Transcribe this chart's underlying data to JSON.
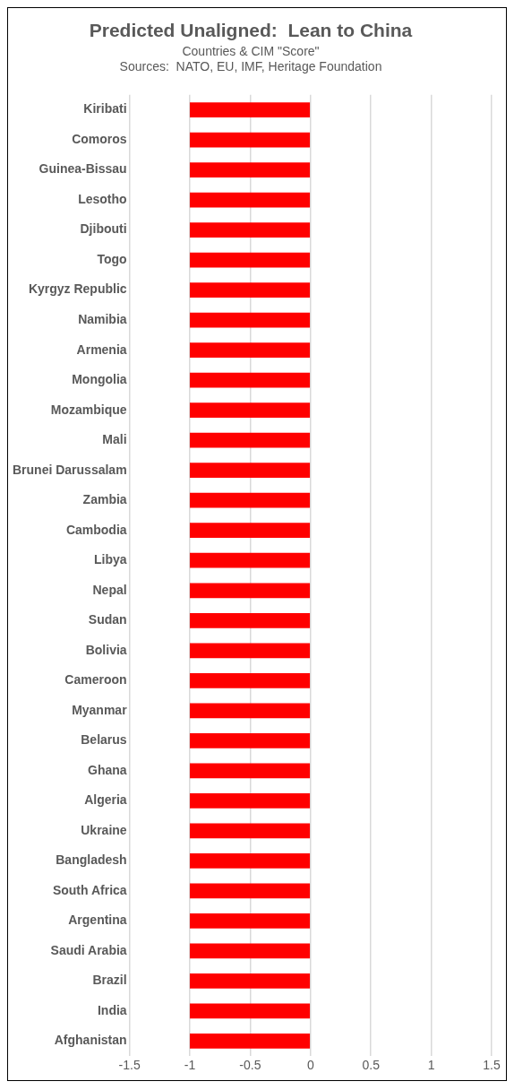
{
  "chart_data": {
    "type": "bar",
    "orientation": "horizontal",
    "title": "Predicted Unaligned:  Lean to China",
    "subtitle": "Countries & CIM \"Score\"",
    "annotations": [
      "Sources:  NATO, EU, IMF, Heritage Foundation"
    ],
    "categories": [
      "Kiribati",
      "Comoros",
      "Guinea-Bissau",
      "Lesotho",
      "Djibouti",
      "Togo",
      "Kyrgyz Republic",
      "Namibia",
      "Armenia",
      "Mongolia",
      "Mozambique",
      "Mali",
      "Brunei Darussalam",
      "Zambia",
      "Cambodia",
      "Libya",
      "Nepal",
      "Sudan",
      "Bolivia",
      "Cameroon",
      "Myanmar",
      "Belarus",
      "Ghana",
      "Algeria",
      "Ukraine",
      "Bangladesh",
      "South Africa",
      "Argentina",
      "Saudi Arabia",
      "Brazil",
      "India",
      "Afghanistan"
    ],
    "values": [
      -1,
      -1,
      -1,
      -1,
      -1,
      -1,
      -1,
      -1,
      -1,
      -1,
      -1,
      -1,
      -1,
      -1,
      -1,
      -1,
      -1,
      -1,
      -1,
      -1,
      -1,
      -1,
      -1,
      -1,
      -1,
      -1,
      -1,
      -1,
      -1,
      -1,
      -1,
      -1
    ],
    "color": "#ff0000",
    "xlim": [
      -1.5,
      1.5
    ],
    "xticks": [
      -1.5,
      -1,
      -0.5,
      0,
      0.5,
      1,
      1.5
    ],
    "grid": "x",
    "legend": false
  }
}
